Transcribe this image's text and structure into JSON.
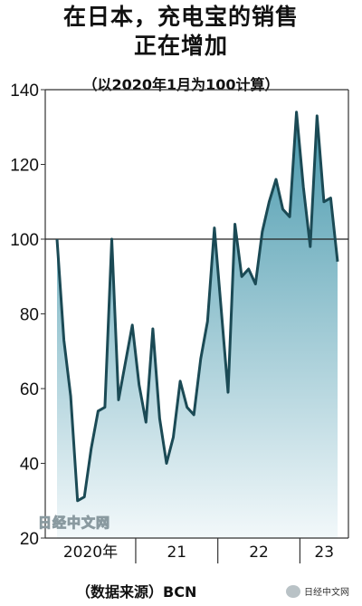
{
  "header": {
    "title_line1": "在日本，充电宝的销售",
    "title_line2": "正在增加",
    "subtitle": "（以2020年1月为100计算）"
  },
  "footer": {
    "source": "（数据来源）BCN",
    "watermark": "日经中文网",
    "wechat_label": "日经中文网"
  },
  "chart_data": {
    "type": "area",
    "ylim": [
      20,
      140
    ],
    "yticks": [
      20,
      40,
      60,
      80,
      100,
      120,
      140
    ],
    "reference_line": 100,
    "x_range": [
      "2020-01",
      "2023-06"
    ],
    "x_tick_labels": [
      {
        "label": "2020年",
        "start": "2020-01",
        "end": "2020-12"
      },
      {
        "label": "21",
        "start": "2021-01",
        "end": "2021-12"
      },
      {
        "label": "22",
        "start": "2022-01",
        "end": "2022-12"
      },
      {
        "label": "23",
        "start": "2023-01",
        "end": "2023-06"
      }
    ],
    "series": [
      {
        "x": [
          "2020-01",
          "2020-02",
          "2020-03",
          "2020-04",
          "2020-05",
          "2020-06",
          "2020-07",
          "2020-08",
          "2020-09",
          "2020-10",
          "2020-11",
          "2020-12",
          "2021-01",
          "2021-02",
          "2021-03",
          "2021-04",
          "2021-05",
          "2021-06",
          "2021-07",
          "2021-08",
          "2021-09",
          "2021-10",
          "2021-11",
          "2021-12",
          "2022-01",
          "2022-02",
          "2022-03",
          "2022-04",
          "2022-05",
          "2022-06",
          "2022-07",
          "2022-08",
          "2022-09",
          "2022-10",
          "2022-11",
          "2022-12",
          "2023-01",
          "2023-02",
          "2023-03",
          "2023-04",
          "2023-05",
          "2023-06"
        ],
        "values": [
          100,
          73,
          58,
          30,
          31,
          44,
          54,
          55,
          100,
          57,
          67,
          77,
          61,
          51,
          76,
          52,
          40,
          47,
          62,
          55,
          53,
          68,
          78,
          103,
          81,
          59,
          104,
          90,
          92,
          88,
          102,
          110,
          116,
          108,
          106,
          134,
          114,
          98,
          133,
          110,
          111,
          94
        ]
      }
    ],
    "colors": {
      "line": "#1b4a55",
      "fill_top": "#4a9aae",
      "fill_bottom": "#f2f8fa",
      "reference": "#222222"
    }
  }
}
